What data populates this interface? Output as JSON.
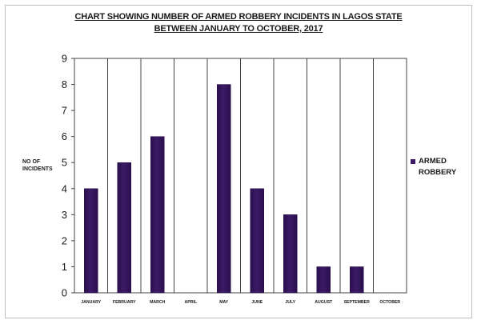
{
  "chart_data": {
    "type": "bar",
    "title_lines": [
      "CHART SHOWING NUMBER OF ARMED ROBBERY INCIDENTS IN LAGOS STATE",
      "BETWEEN JANUARY TO OCTOBER, 2017"
    ],
    "ylabel_lines": [
      "NO OF",
      "INCIDENTS"
    ],
    "xlabel": "",
    "categories": [
      "JANUARY",
      "FEBRUARY",
      "MARCH",
      "APRIL",
      "MAY",
      "JUNE",
      "JULY",
      "AUGUST",
      "SEPTEMBER",
      "OCTOBER"
    ],
    "series": [
      {
        "name": "ARMED ROBBERY",
        "values": [
          4,
          5,
          6,
          0,
          8,
          4,
          3,
          1,
          1,
          0
        ]
      }
    ],
    "ylim": [
      0,
      9
    ],
    "yticks": [
      0,
      1,
      2,
      3,
      4,
      5,
      6,
      7,
      8,
      9
    ],
    "grid": "vertical-category-dividers",
    "legend": "right",
    "colors": {
      "bar": "#3b1a66",
      "bar_dark": "#2a0f4d",
      "grid": "#444444"
    }
  }
}
